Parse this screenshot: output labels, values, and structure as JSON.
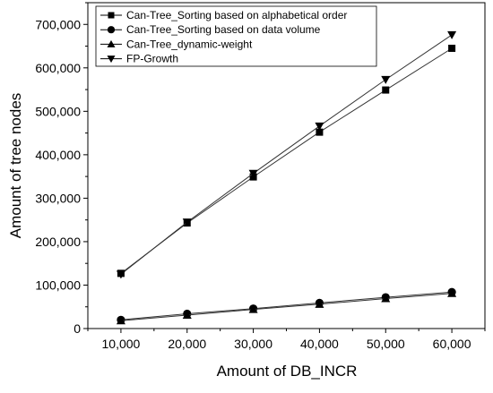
{
  "chart_data": {
    "type": "line",
    "title": "",
    "xlabel": "Amount of DB_INCR",
    "ylabel": "Amount of tree nodes",
    "x": [
      10000,
      20000,
      30000,
      40000,
      50000,
      60000
    ],
    "x_tick_labels": [
      "10,000",
      "20,000",
      "30,000",
      "40,000",
      "50,000",
      "60,000"
    ],
    "xlim": [
      5000,
      65000
    ],
    "y_ticks": [
      0,
      100000,
      200000,
      300000,
      400000,
      500000,
      600000,
      700000
    ],
    "y_tick_labels": [
      "0",
      "100,000",
      "200,000",
      "300,000",
      "400,000",
      "500,000",
      "600,000",
      "700,000"
    ],
    "ylim": [
      0,
      750000
    ],
    "grid": false,
    "legend_position": "top-left",
    "series": [
      {
        "name": "Can-Tree_Sorting based on alphabetical order",
        "marker": "square",
        "values": [
          127000,
          243000,
          349000,
          452000,
          549000,
          645000
        ]
      },
      {
        "name": "Can-Tree_Sorting based on data volume",
        "marker": "circle",
        "values": [
          20000,
          34000,
          46000,
          59000,
          72000,
          84000
        ]
      },
      {
        "name": "Can-Tree_dynamic-weight",
        "marker": "triangle-up",
        "values": [
          18000,
          31000,
          44000,
          56000,
          69000,
          81000
        ]
      },
      {
        "name": "FP-Growth",
        "marker": "triangle-down",
        "values": [
          125000,
          245000,
          357000,
          466000,
          573000,
          676000
        ]
      }
    ]
  }
}
